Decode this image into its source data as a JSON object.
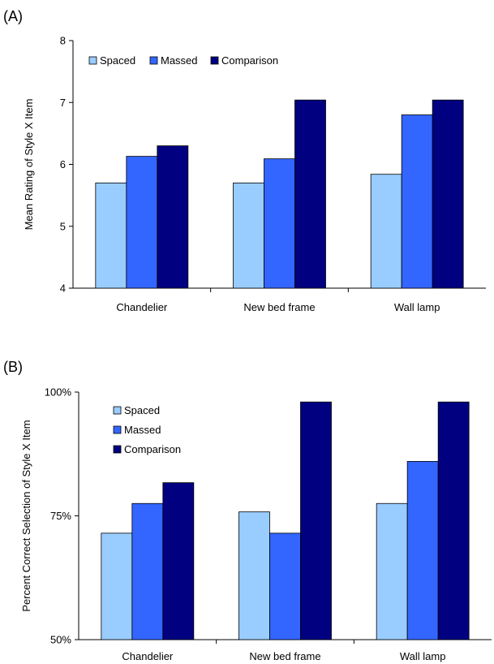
{
  "panel_a_label": "(A)",
  "panel_b_label": "(B)",
  "chart_data": [
    {
      "type": "bar",
      "title": "",
      "xlabel": "",
      "ylabel": "Mean Rating of Style X Item",
      "categories": [
        "Chandelier",
        "New bed frame",
        "Wall lamp"
      ],
      "ylim": [
        4,
        8
      ],
      "yticks": [
        4,
        5,
        6,
        7,
        8
      ],
      "ytick_labels": [
        "4",
        "5",
        "6",
        "7",
        "8"
      ],
      "grid": false,
      "legend_placement": "top-left",
      "legend_orientation": "horizontal",
      "series": [
        {
          "name": "Spaced",
          "color": "#99ccff",
          "values": [
            5.7,
            5.7,
            5.84
          ]
        },
        {
          "name": "Massed",
          "color": "#3366ff",
          "values": [
            6.13,
            6.09,
            6.8
          ]
        },
        {
          "name": "Comparison",
          "color": "#000080",
          "values": [
            6.3,
            7.04,
            7.04
          ]
        }
      ]
    },
    {
      "type": "bar",
      "title": "",
      "xlabel": "",
      "ylabel": "Percent Correct Selection of Style X Item",
      "categories": [
        "Chandelier",
        "New bed frame",
        "Wall lamp"
      ],
      "ylim": [
        50,
        100
      ],
      "yticks": [
        50,
        75,
        100
      ],
      "ytick_labels": [
        "50%",
        "75%",
        "100%"
      ],
      "grid": false,
      "legend_placement": "top-left",
      "legend_orientation": "vertical",
      "series": [
        {
          "name": "Spaced",
          "color": "#99ccff",
          "values": [
            71.5,
            75.8,
            77.5
          ]
        },
        {
          "name": "Massed",
          "color": "#3366ff",
          "values": [
            77.5,
            71.5,
            86.0
          ]
        },
        {
          "name": "Comparison",
          "color": "#000080",
          "values": [
            81.7,
            98.0,
            98.0
          ]
        }
      ]
    }
  ]
}
